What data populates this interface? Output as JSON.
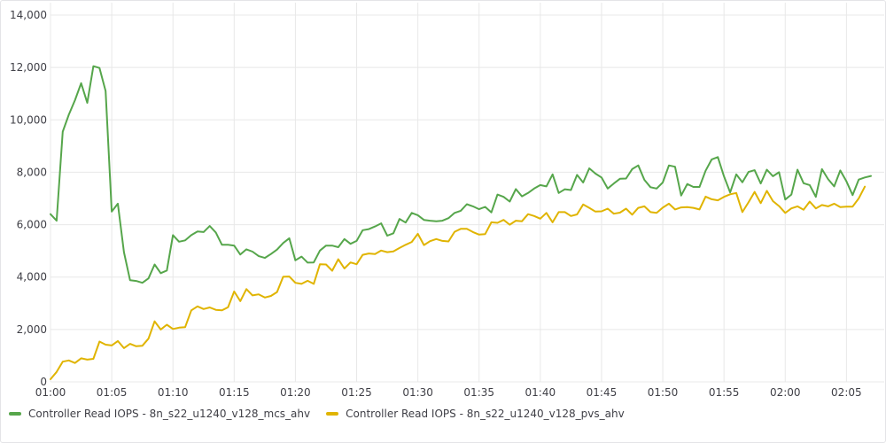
{
  "chart_data": {
    "type": "line",
    "title": "",
    "xlabel": "",
    "ylabel": "",
    "ylim": [
      0,
      14000
    ],
    "yticks": [
      0,
      2000,
      4000,
      6000,
      8000,
      10000,
      12000,
      14000
    ],
    "ytick_labels": [
      "0",
      "2,000",
      "4,000",
      "6,000",
      "8,000",
      "10,000",
      "12,000",
      "14,000"
    ],
    "xlim": [
      "01:00",
      "02:07"
    ],
    "xtick_labels": [
      "01:00",
      "01:05",
      "01:10",
      "01:15",
      "01:20",
      "01:25",
      "01:30",
      "01:35",
      "01:40",
      "01:45",
      "01:50",
      "01:55",
      "02:00",
      "02:05"
    ],
    "grid": true,
    "legend_position": "bottom-left",
    "x_start": "01:00",
    "x_step_seconds": 30,
    "series": [
      {
        "name": "Controller Read IOPS - 8n_s22_u1240_v128_mcs_ahv",
        "color": "#56a64b",
        "values": [
          6400,
          6150,
          9550,
          10200,
          10750,
          11400,
          10650,
          12050,
          11980,
          11100,
          6500,
          6800,
          4950,
          3880,
          3850,
          3780,
          3950,
          4480,
          4150,
          4250,
          5600,
          5350,
          5400,
          5600,
          5740,
          5720,
          5950,
          5700,
          5230,
          5230,
          5200,
          4860,
          5060,
          4970,
          4800,
          4730,
          4880,
          5050,
          5300,
          5480,
          4640,
          4780,
          4550,
          4560,
          5010,
          5200,
          5200,
          5140,
          5450,
          5270,
          5380,
          5790,
          5830,
          5930,
          6050,
          5580,
          5670,
          6220,
          6080,
          6450,
          6360,
          6180,
          6150,
          6130,
          6150,
          6250,
          6450,
          6530,
          6780,
          6700,
          6590,
          6680,
          6470,
          7150,
          7060,
          6880,
          7360,
          7080,
          7210,
          7380,
          7510,
          7460,
          7920,
          7210,
          7350,
          7320,
          7900,
          7610,
          8150,
          7950,
          7800,
          7380,
          7570,
          7750,
          7760,
          8120,
          8260,
          7710,
          7430,
          7380,
          7610,
          8260,
          8210,
          7110,
          7550,
          7440,
          7440,
          8060,
          8490,
          8580,
          7850,
          7230,
          7920,
          7620,
          8010,
          8080,
          7570,
          8100,
          7850,
          8000,
          6960,
          7150,
          8100,
          7580,
          7510,
          7060,
          8120,
          7740,
          7460,
          8070,
          7650,
          7130,
          7720,
          7800,
          7860
        ]
      },
      {
        "name": "Controller Read IOPS - 8n_s22_u1240_v128_pvs_ahv",
        "color": "#e0b400",
        "values": [
          100,
          380,
          770,
          820,
          720,
          900,
          850,
          880,
          1540,
          1420,
          1390,
          1560,
          1290,
          1450,
          1360,
          1380,
          1650,
          2310,
          2000,
          2180,
          2020,
          2070,
          2090,
          2730,
          2880,
          2780,
          2840,
          2750,
          2730,
          2850,
          3450,
          3080,
          3540,
          3300,
          3340,
          3220,
          3280,
          3430,
          4010,
          4020,
          3780,
          3740,
          3860,
          3740,
          4490,
          4480,
          4240,
          4680,
          4330,
          4560,
          4490,
          4850,
          4900,
          4880,
          5010,
          4950,
          4980,
          5110,
          5230,
          5340,
          5650,
          5220,
          5370,
          5450,
          5380,
          5360,
          5730,
          5840,
          5840,
          5720,
          5620,
          5640,
          6090,
          6070,
          6180,
          6000,
          6150,
          6130,
          6400,
          6330,
          6230,
          6450,
          6090,
          6480,
          6480,
          6330,
          6390,
          6770,
          6640,
          6500,
          6510,
          6610,
          6420,
          6460,
          6610,
          6380,
          6640,
          6700,
          6480,
          6450,
          6650,
          6800,
          6580,
          6660,
          6670,
          6640,
          6580,
          7070,
          6970,
          6930,
          7060,
          7160,
          7210,
          6480,
          6850,
          7250,
          6820,
          7290,
          6900,
          6710,
          6450,
          6620,
          6700,
          6570,
          6880,
          6620,
          6750,
          6700,
          6800,
          6670,
          6690,
          6690,
          7000,
          7450
        ]
      }
    ]
  }
}
